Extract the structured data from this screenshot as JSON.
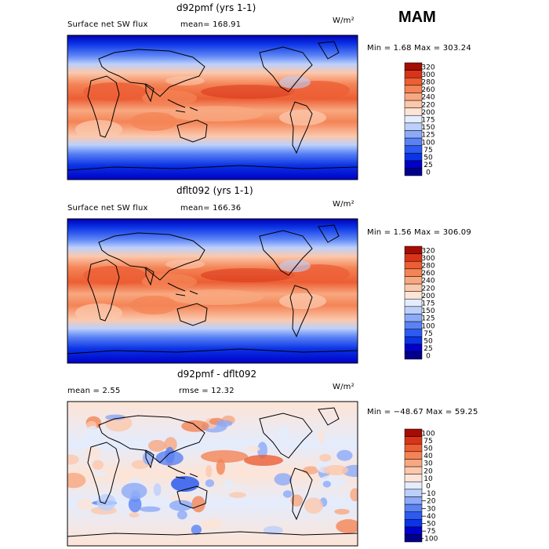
{
  "season": "MAM",
  "panels": [
    {
      "title": "d92pmf (yrs 1-1)",
      "left_label": "Surface net SW flux",
      "mean_text": "mean= 168.91",
      "units": "W/m²",
      "stats": "Min =    1.68 Max = 303.24"
    },
    {
      "title": "dflt092 (yrs 1-1)",
      "left_label": "Surface net SW flux",
      "mean_text": "mean= 166.36",
      "units": "W/m²",
      "stats": "Min =    1.56 Max = 306.09"
    },
    {
      "title": "d92pmf - dflt092",
      "left_label": "mean =    2.55",
      "mean_text": "rmse =  12.32",
      "units": "W/m²",
      "stats": "Min = −48.67 Max =   59.25"
    }
  ],
  "chart_data": [
    {
      "type": "heatmap",
      "title": "d92pmf (yrs 1-1)",
      "variable": "Surface net SW flux",
      "units": "W/m²",
      "mean": 168.91,
      "min": 1.68,
      "max": 303.24,
      "colorbar_levels": [
        0,
        25,
        50,
        75,
        100,
        125,
        150,
        175,
        200,
        220,
        240,
        260,
        280,
        300,
        320
      ],
      "colorbar_colors": [
        "#00008c",
        "#0000c8",
        "#0b34e6",
        "#2d5af0",
        "#5a82f5",
        "#8caaf8",
        "#bcd0fb",
        "#e4ecfd",
        "#fde4d6",
        "#fbc8ac",
        "#f8a880",
        "#f48456",
        "#ec5e34",
        "#d83418",
        "#a40c04"
      ]
    },
    {
      "type": "heatmap",
      "title": "dflt092 (yrs 1-1)",
      "variable": "Surface net SW flux",
      "units": "W/m²",
      "mean": 166.36,
      "min": 1.56,
      "max": 306.09,
      "colorbar_levels": [
        0,
        25,
        50,
        75,
        100,
        125,
        150,
        175,
        200,
        220,
        240,
        260,
        280,
        300,
        320
      ],
      "colorbar_colors": [
        "#00008c",
        "#0000c8",
        "#0b34e6",
        "#2d5af0",
        "#5a82f5",
        "#8caaf8",
        "#bcd0fb",
        "#e4ecfd",
        "#fde4d6",
        "#fbc8ac",
        "#f8a880",
        "#f48456",
        "#ec5e34",
        "#d83418",
        "#a40c04"
      ]
    },
    {
      "type": "heatmap",
      "title": "d92pmf - dflt092",
      "units": "W/m²",
      "mean": 2.55,
      "rmse": 12.32,
      "min": -48.67,
      "max": 59.25,
      "colorbar_levels": [
        -100,
        -75,
        -50,
        -40,
        -30,
        -20,
        -10,
        0,
        10,
        20,
        30,
        40,
        50,
        75,
        100
      ],
      "colorbar_label_text": [
        "−100",
        "−75",
        "−50",
        "−40",
        "−30",
        "−20",
        "−10",
        "0",
        "10",
        "20",
        "30",
        "40",
        "50",
        "75",
        "100"
      ],
      "colorbar_colors": [
        "#00008c",
        "#0000c8",
        "#0b34e6",
        "#2d5af0",
        "#5a82f5",
        "#8caaf8",
        "#bcd0fb",
        "#e4ecfd",
        "#fde4d6",
        "#fbc8ac",
        "#f8a880",
        "#f48456",
        "#ec5e34",
        "#d83418",
        "#a40c04"
      ]
    }
  ]
}
